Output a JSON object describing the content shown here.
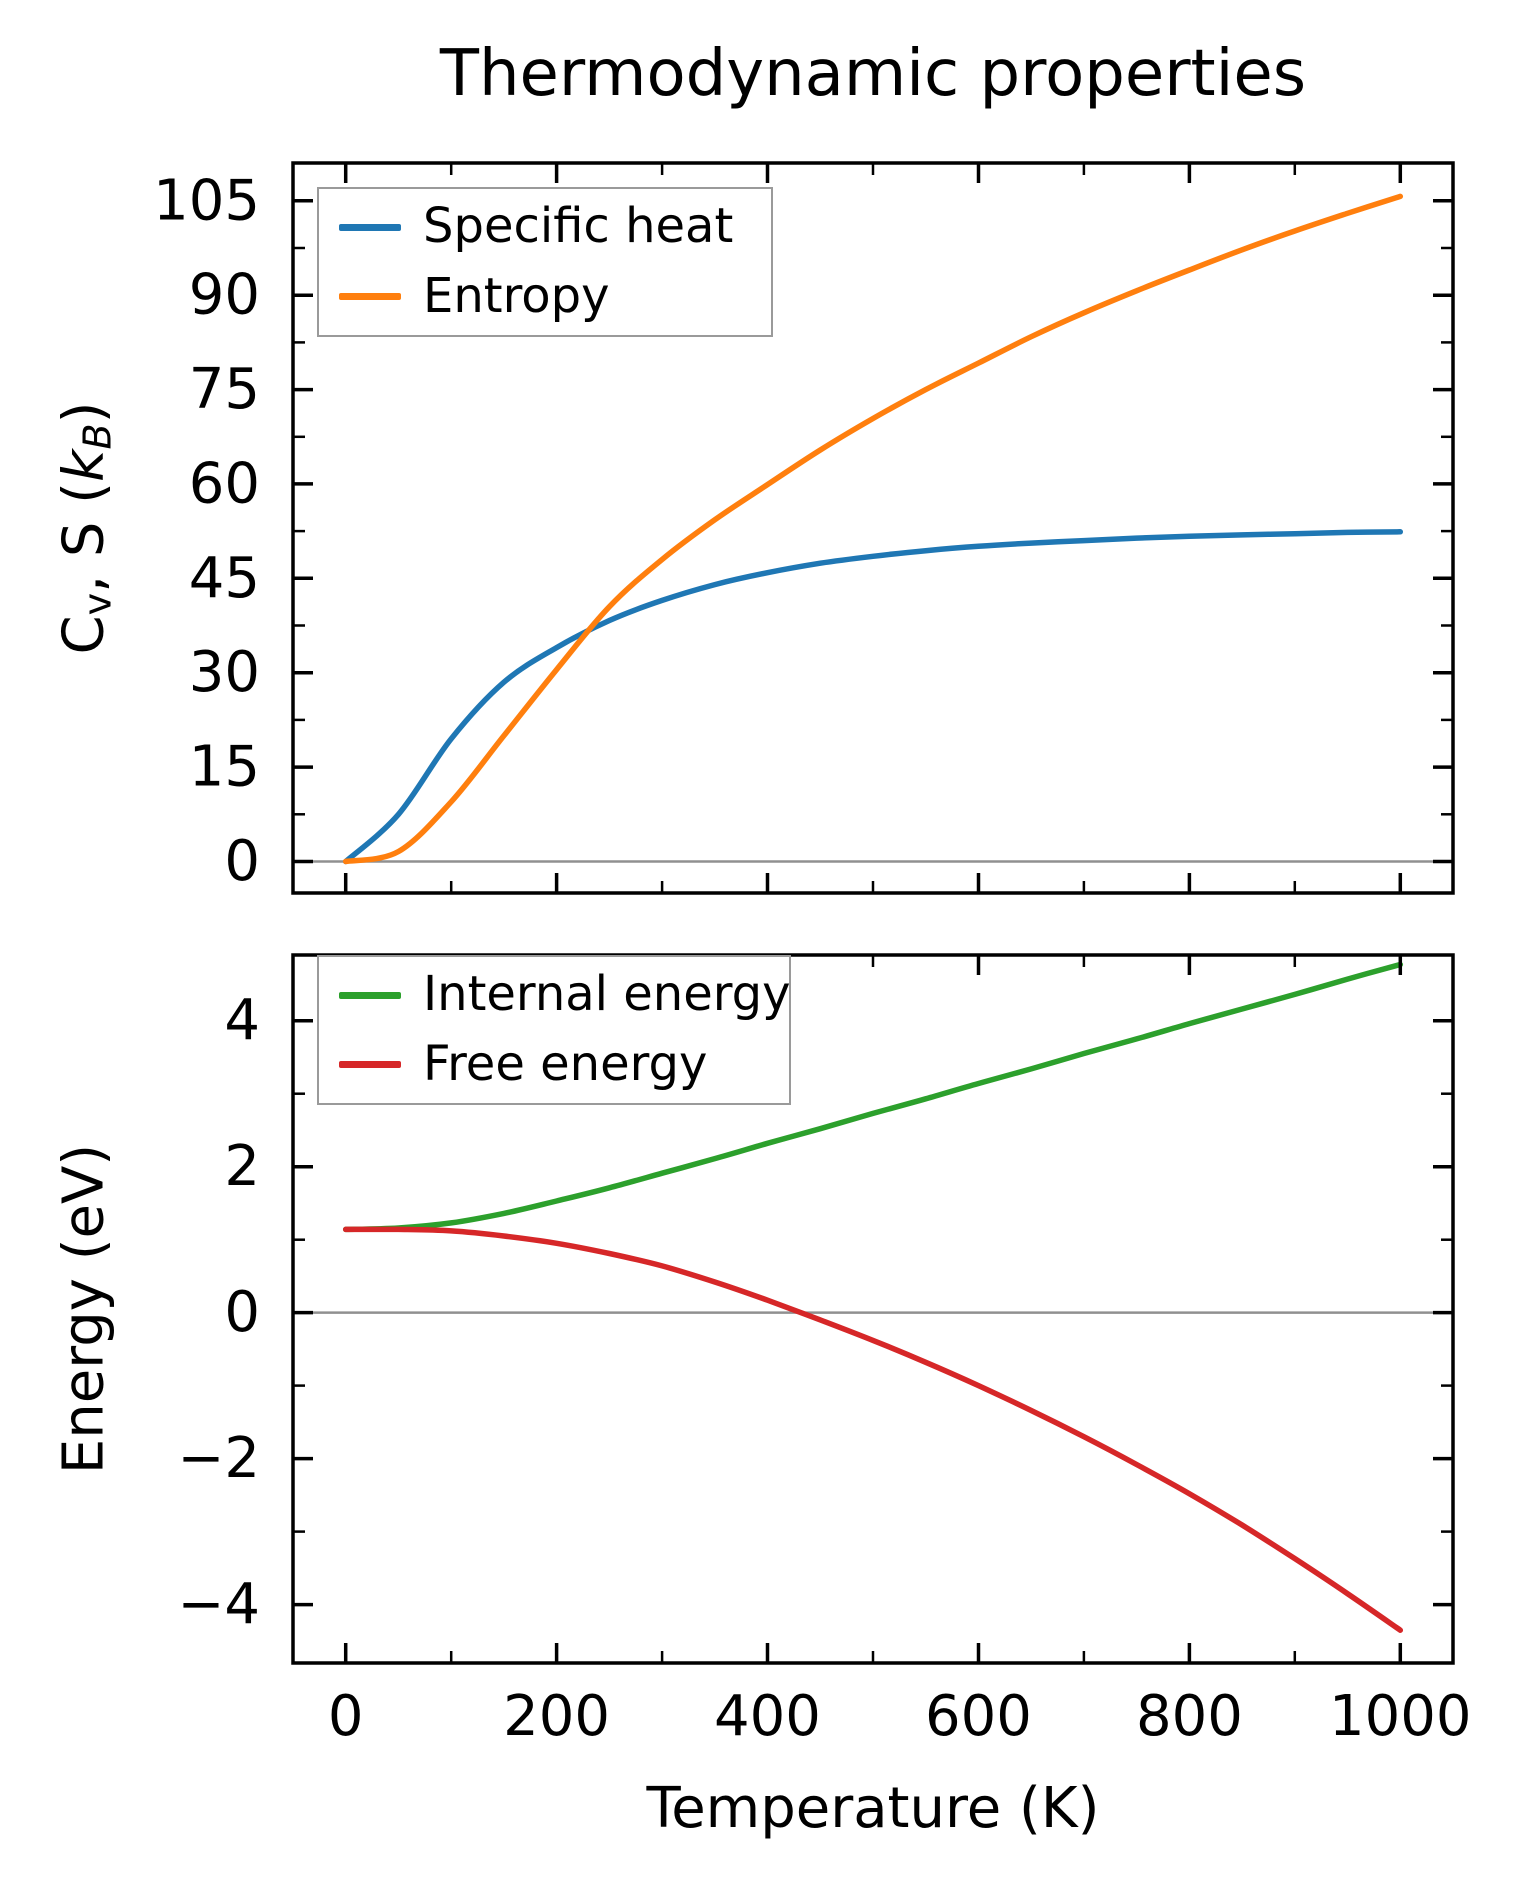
{
  "figure_title": "Thermodynamic properties",
  "colors": {
    "specific_heat": "#1f77b4",
    "entropy": "#ff7f0e",
    "internal_energy": "#2ca02c",
    "free_energy": "#d62728",
    "zero_line": "#909090",
    "spine": "#000000",
    "legend_border": "#9a9a9a"
  },
  "ylabels": {
    "top": {
      "c": "C",
      "v": "v",
      "mid": ", S (",
      "k": "k",
      "b": "B",
      "close": ")"
    },
    "bottom": "Energy (eV)"
  },
  "xlabel": "Temperature (K)",
  "chart_data": [
    {
      "type": "line",
      "panel": "top",
      "x": [
        0,
        50,
        100,
        150,
        200,
        250,
        300,
        350,
        400,
        450,
        500,
        550,
        600,
        650,
        700,
        750,
        800,
        850,
        900,
        950,
        1000
      ],
      "series": [
        {
          "name": "Specific heat",
          "color": "#1f77b4",
          "values": [
            0,
            7.5,
            19.5,
            28.5,
            34.0,
            38.3,
            41.5,
            44.0,
            45.9,
            47.4,
            48.5,
            49.4,
            50.1,
            50.6,
            51.0,
            51.4,
            51.7,
            51.9,
            52.1,
            52.3,
            52.4
          ]
        },
        {
          "name": "Entropy",
          "color": "#ff7f0e",
          "values": [
            0,
            1.6,
            9.5,
            20.0,
            30.5,
            40.5,
            48.0,
            54.3,
            59.9,
            65.4,
            70.4,
            75.0,
            79.2,
            83.4,
            87.2,
            90.7,
            94.0,
            97.2,
            100.2,
            103.0,
            105.7
          ]
        }
      ],
      "xlim": [
        -50,
        1050
      ],
      "ylim": [
        -5,
        111
      ],
      "xticks": {
        "values": [
          0,
          200,
          400,
          600,
          800,
          1000
        ],
        "labels": [],
        "minor": [
          100,
          300,
          500,
          700,
          900
        ]
      },
      "yticks": {
        "values": [
          0,
          15,
          30,
          45,
          60,
          75,
          90,
          105
        ],
        "labels": [
          "0",
          "15",
          "30",
          "45",
          "60",
          "75",
          "90",
          "105"
        ],
        "minor": [
          7.5,
          22.5,
          37.5,
          52.5,
          67.5,
          82.5,
          97.5
        ]
      },
      "zero_line": true,
      "legend_position": "upper left",
      "grid": false
    },
    {
      "type": "line",
      "panel": "bottom",
      "x": [
        0,
        50,
        100,
        150,
        200,
        250,
        300,
        350,
        400,
        450,
        500,
        550,
        600,
        650,
        700,
        750,
        800,
        850,
        900,
        950,
        1000
      ],
      "series": [
        {
          "name": "Internal energy",
          "color": "#2ca02c",
          "values": [
            1.14,
            1.16,
            1.23,
            1.36,
            1.53,
            1.71,
            1.91,
            2.11,
            2.32,
            2.52,
            2.73,
            2.93,
            3.14,
            3.34,
            3.55,
            3.75,
            3.96,
            4.16,
            4.36,
            4.57,
            4.77
          ]
        },
        {
          "name": "Free energy",
          "color": "#d62728",
          "values": [
            1.14,
            1.14,
            1.12,
            1.05,
            0.95,
            0.81,
            0.64,
            0.42,
            0.17,
            -0.1,
            -0.38,
            -0.68,
            -1.0,
            -1.34,
            -1.7,
            -2.08,
            -2.48,
            -2.91,
            -3.37,
            -3.85,
            -4.35
          ]
        }
      ],
      "xlim": [
        -50,
        1050
      ],
      "ylim": [
        -4.8,
        4.9
      ],
      "xticks": {
        "values": [
          0,
          200,
          400,
          600,
          800,
          1000
        ],
        "labels": [
          "0",
          "200",
          "400",
          "600",
          "800",
          "1000"
        ],
        "minor": [
          100,
          300,
          500,
          700,
          900
        ]
      },
      "yticks": {
        "values": [
          -4,
          -2,
          0,
          2,
          4
        ],
        "labels": [
          "−4",
          "−2",
          "0",
          "2",
          "4"
        ],
        "minor": [
          -3,
          -1,
          1,
          3
        ]
      },
      "zero_line": true,
      "legend_position": "upper left",
      "grid": false
    }
  ]
}
